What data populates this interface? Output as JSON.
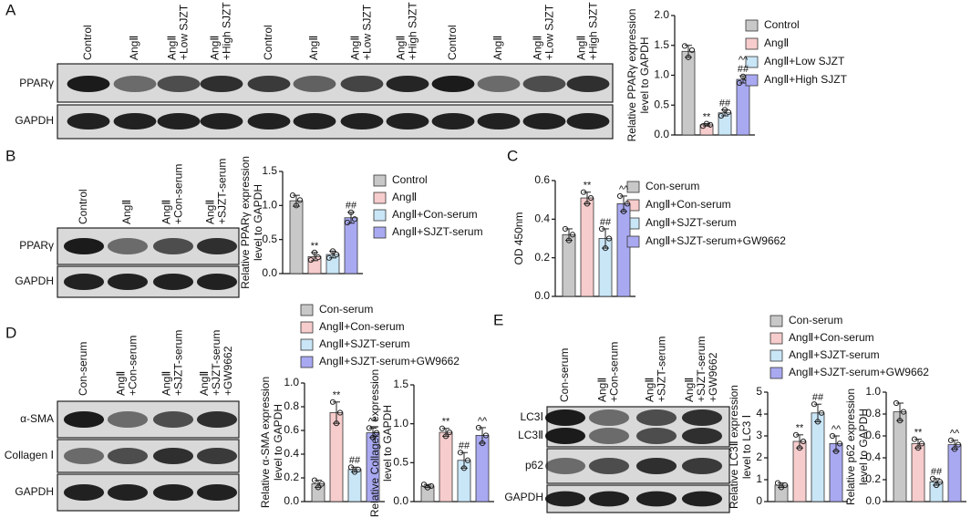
{
  "panels": [
    "A",
    "B",
    "C",
    "D",
    "E"
  ],
  "blots": [
    {
      "lanes": [
        [
          "Control"
        ],
        [
          "AngⅡ"
        ],
        [
          "AngⅡ",
          "+Low SJZT"
        ],
        [
          "AngⅡ",
          "+High SJZT"
        ],
        [
          "Control"
        ],
        [
          "AngⅡ"
        ],
        [
          "AngⅡ",
          "+Low SJZT"
        ],
        [
          "AngⅡ",
          "+High SJZT"
        ],
        [
          "Control"
        ],
        [
          "AngⅡ"
        ],
        [
          "AngⅡ",
          "+Low SJZT"
        ],
        [
          "AngⅡ",
          "+High SJZT"
        ]
      ],
      "rows": [
        "PPARγ",
        "GAPDH"
      ]
    },
    {
      "lanes": [
        [
          "Control"
        ],
        [
          "AngⅡ"
        ],
        [
          "AngⅡ",
          "+Con-serum"
        ],
        [
          "AngⅡ",
          "+SJZT-serum"
        ]
      ],
      "rows": [
        "PPARγ",
        "GAPDH"
      ]
    },
    {
      "lanes": [
        [
          "Con-serum"
        ],
        [
          "AngⅡ",
          "+Con-serum"
        ],
        [
          "AngⅡ",
          "+SJZT-serum"
        ],
        [
          "AngⅡ",
          "+SJZT-serum",
          "+GW9662"
        ]
      ],
      "rows": [
        "α-SMA",
        "Collagen Ⅰ",
        "GAPDH"
      ]
    },
    {
      "lanes": [
        [
          "Con-serum"
        ],
        [
          "AngⅡ",
          "+Con-serum"
        ],
        [
          "AngⅡ",
          "+SJZT-serum"
        ],
        [
          "AngⅡ",
          "+SJZT-serum",
          "+GW9662"
        ]
      ],
      "rows": [
        "LC3Ⅰ",
        "LC3Ⅱ",
        "p62",
        "GAPDH"
      ]
    }
  ],
  "chart_data": [
    {
      "type": "bar",
      "ylabel": [
        "Relative PPARγ expression",
        "level to GAPDH"
      ],
      "ylim": [
        0,
        2
      ],
      "yticks": [
        {
          "value": 0,
          "label": "0.0"
        },
        0.5,
        {
          "value": 1,
          "label": "1.0"
        },
        1.5,
        {
          "value": 2,
          "label": "2.0"
        }
      ],
      "series": [
        {
          "name": "Control",
          "color": "#c8c8c8",
          "values": [
            1.4
          ],
          "errors": [
            0.1
          ],
          "points": [
            1.49,
            1.3,
            1.42
          ]
        },
        {
          "name": "AngⅡ",
          "color": "#f7cccc",
          "values": [
            0.17
          ],
          "errors": [
            0.02
          ],
          "points": [
            0.15,
            0.19,
            0.17
          ],
          "marks": [
            "**"
          ]
        },
        {
          "name": "AngⅡ+Low SJZT",
          "color": "#c9e6f7",
          "values": [
            0.37
          ],
          "errors": [
            0.05
          ],
          "points": [
            0.32,
            0.42,
            0.38
          ],
          "marks": [
            "##"
          ]
        },
        {
          "name": "AngⅡ+High SJZT",
          "color": "#a9a9f2",
          "values": [
            0.93
          ],
          "errors": [
            0.06
          ],
          "points": [
            0.87,
            0.98,
            0.94
          ],
          "marks": [
            "^^",
            "##"
          ]
        }
      ]
    },
    {
      "type": "bar",
      "ylabel": [
        "Relative PPARγ expression",
        "level to GAPDH"
      ],
      "ylim": [
        0,
        1.5
      ],
      "yticks": [
        {
          "value": 0,
          "label": "0.0"
        },
        0.5,
        {
          "value": 1,
          "label": "1.0"
        },
        1.5
      ],
      "series": [
        {
          "name": "Control",
          "color": "#c8c8c8",
          "values": [
            1.07
          ],
          "errors": [
            0.08
          ],
          "points": [
            1.15,
            1.0,
            1.08
          ]
        },
        {
          "name": "AngⅡ",
          "color": "#f7cccc",
          "values": [
            0.25
          ],
          "errors": [
            0.06
          ],
          "points": [
            0.2,
            0.31,
            0.24
          ],
          "marks": [
            "**"
          ]
        },
        {
          "name": "AngⅡ+Con-serum",
          "color": "#c9e6f7",
          "values": [
            0.28
          ],
          "errors": [
            0.05
          ],
          "points": [
            0.23,
            0.33,
            0.28
          ]
        },
        {
          "name": "AngⅡ+SJZT-serum",
          "color": "#a9a9f2",
          "values": [
            0.82
          ],
          "errors": [
            0.08
          ],
          "points": [
            0.75,
            0.9,
            0.8
          ],
          "marks": [
            "##"
          ]
        }
      ]
    },
    {
      "type": "bar",
      "ylabel": [
        "OD 450nm"
      ],
      "ylim": [
        0,
        0.6
      ],
      "yticks": [
        {
          "value": 0,
          "label": "0.0"
        },
        0.2,
        0.4,
        0.6
      ],
      "series": [
        {
          "name": "Con-serum",
          "color": "#c8c8c8",
          "values": [
            0.32
          ],
          "errors": [
            0.03
          ],
          "points": [
            0.35,
            0.29,
            0.32
          ]
        },
        {
          "name": "AngⅡ+Con-serum",
          "color": "#f7cccc",
          "values": [
            0.51
          ],
          "errors": [
            0.03
          ],
          "points": [
            0.54,
            0.48,
            0.51
          ],
          "marks": [
            "**"
          ]
        },
        {
          "name": "AngⅡ+SJZT-serum",
          "color": "#c9e6f7",
          "values": [
            0.3
          ],
          "errors": [
            0.05
          ],
          "points": [
            0.35,
            0.25,
            0.3
          ],
          "marks": [
            "##"
          ]
        },
        {
          "name": "AngⅡ+SJZT-serum+GW9662",
          "color": "#a9a9f2",
          "values": [
            0.48
          ],
          "errors": [
            0.04
          ],
          "points": [
            0.52,
            0.44,
            0.48
          ],
          "marks": [
            "^^"
          ]
        }
      ]
    },
    {
      "type": "bar",
      "ylabel": [
        "Relative α-SMA expression",
        "level to GAPDH"
      ],
      "ylim": [
        0,
        1
      ],
      "yticks": [
        {
          "value": 0,
          "label": "0.0"
        },
        0.2,
        0.4,
        0.6,
        0.8,
        {
          "value": 1,
          "label": "1.0"
        }
      ],
      "series": [
        {
          "name": "Con-serum",
          "color": "#c8c8c8",
          "values": [
            0.15
          ],
          "errors": [
            0.03
          ],
          "points": [
            0.18,
            0.12,
            0.15
          ]
        },
        {
          "name": "AngⅡ+Con-serum",
          "color": "#f7cccc",
          "values": [
            0.75
          ],
          "errors": [
            0.09
          ],
          "points": [
            0.84,
            0.66,
            0.75
          ],
          "marks": [
            "**"
          ]
        },
        {
          "name": "AngⅡ+SJZT-serum",
          "color": "#c9e6f7",
          "values": [
            0.27
          ],
          "errors": [
            0.02
          ],
          "points": [
            0.29,
            0.25,
            0.27
          ],
          "marks": [
            "##"
          ]
        },
        {
          "name": "AngⅡ+SJZT-serum+GW9662",
          "color": "#a9a9f2",
          "values": [
            0.58
          ],
          "errors": [
            0.04
          ],
          "points": [
            0.62,
            0.54,
            0.58
          ],
          "marks": [
            "^^"
          ]
        }
      ]
    },
    {
      "type": "bar",
      "ylabel": [
        "Relative Collagen Ⅰ expression",
        "level to GAPDH"
      ],
      "ylim": [
        0,
        1.5
      ],
      "yticks": [
        {
          "value": 0,
          "label": "0.0"
        },
        0.5,
        {
          "value": 1,
          "label": "1.0"
        },
        1.5
      ],
      "series": [
        {
          "color": "#c8c8c8",
          "values": [
            0.2
          ],
          "errors": [
            0.02
          ],
          "points": [
            0.22,
            0.18,
            0.2
          ]
        },
        {
          "color": "#f7cccc",
          "values": [
            0.89
          ],
          "errors": [
            0.05
          ],
          "points": [
            0.94,
            0.84,
            0.89
          ],
          "marks": [
            "**"
          ]
        },
        {
          "color": "#c9e6f7",
          "values": [
            0.53
          ],
          "errors": [
            0.1
          ],
          "points": [
            0.63,
            0.43,
            0.53
          ],
          "marks": [
            "##"
          ]
        },
        {
          "color": "#a9a9f2",
          "values": [
            0.85
          ],
          "errors": [
            0.1
          ],
          "points": [
            0.95,
            0.75,
            0.85
          ],
          "marks": [
            "^^"
          ]
        }
      ]
    },
    {
      "type": "bar",
      "ylabel": [
        "Relative LC3Ⅱ expression",
        "level to LC3 Ⅰ"
      ],
      "ylim": [
        0,
        5
      ],
      "yticks": [
        0,
        1,
        2,
        3,
        4,
        5
      ],
      "series": [
        {
          "name": "Con-serum",
          "color": "#c8c8c8",
          "values": [
            0.75
          ],
          "errors": [
            0.1
          ],
          "points": [
            0.85,
            0.65,
            0.75
          ]
        },
        {
          "name": "AngⅡ+Con-serum",
          "color": "#f7cccc",
          "values": [
            2.75
          ],
          "errors": [
            0.3
          ],
          "points": [
            3.05,
            2.45,
            2.75
          ],
          "marks": [
            "**"
          ]
        },
        {
          "name": "AngⅡ+SJZT-serum",
          "color": "#c9e6f7",
          "values": [
            4.05
          ],
          "errors": [
            0.4
          ],
          "points": [
            4.45,
            3.65,
            4.05
          ],
          "marks": [
            "##"
          ]
        },
        {
          "name": "AngⅡ+SJZT-serum+GW9662",
          "color": "#a9a9f2",
          "values": [
            2.65
          ],
          "errors": [
            0.35
          ],
          "points": [
            3.0,
            2.3,
            2.65
          ],
          "marks": [
            "^^"
          ]
        }
      ]
    },
    {
      "type": "bar",
      "ylabel": [
        "Relative p62 expression",
        "level to GAPDH"
      ],
      "ylim": [
        0,
        1
      ],
      "yticks": [
        {
          "value": 0,
          "label": "0.0"
        },
        0.2,
        0.4,
        0.6,
        0.8,
        {
          "value": 1,
          "label": "1.0"
        }
      ],
      "series": [
        {
          "color": "#c8c8c8",
          "values": [
            0.82
          ],
          "errors": [
            0.08
          ],
          "points": [
            0.9,
            0.74,
            0.82
          ]
        },
        {
          "color": "#f7cccc",
          "values": [
            0.53
          ],
          "errors": [
            0.04
          ],
          "points": [
            0.57,
            0.49,
            0.53
          ],
          "marks": [
            "**"
          ]
        },
        {
          "color": "#c9e6f7",
          "values": [
            0.18
          ],
          "errors": [
            0.03
          ],
          "points": [
            0.21,
            0.15,
            0.18
          ],
          "marks": [
            "##"
          ]
        },
        {
          "color": "#a9a9f2",
          "values": [
            0.52
          ],
          "errors": [
            0.04
          ],
          "points": [
            0.56,
            0.48,
            0.52
          ],
          "marks": [
            "^^"
          ]
        }
      ]
    }
  ]
}
